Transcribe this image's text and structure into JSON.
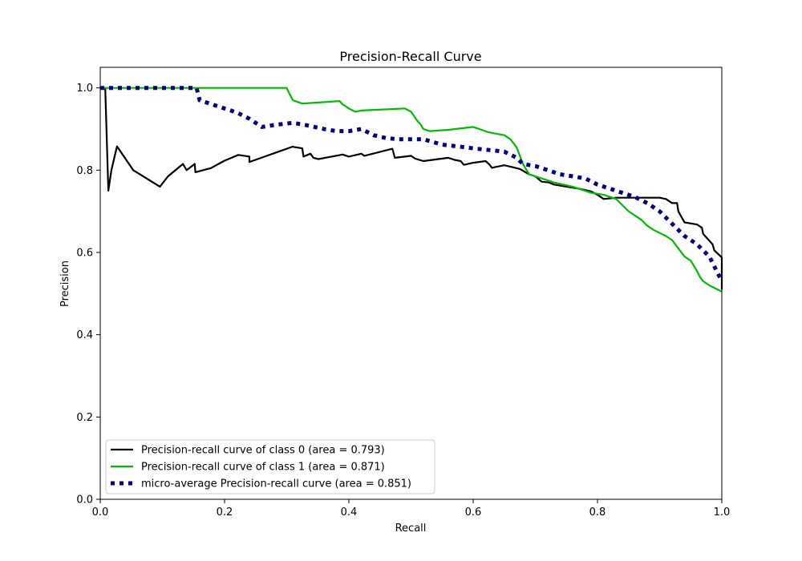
{
  "chart_data": {
    "type": "line",
    "title": "Precision-Recall Curve",
    "xlabel": "Recall",
    "ylabel": "Precision",
    "xlim": [
      0,
      1
    ],
    "ylim": [
      0,
      1.05
    ],
    "x_ticks": [
      0.0,
      0.2,
      0.4,
      0.6,
      0.8,
      1.0
    ],
    "x_tick_labels": [
      "0.0",
      "0.2",
      "0.4",
      "0.6",
      "0.8",
      "1.0"
    ],
    "y_ticks": [
      0.0,
      0.2,
      0.4,
      0.6,
      0.8,
      1.0
    ],
    "y_tick_labels": [
      "0.0",
      "0.2",
      "0.4",
      "0.6",
      "0.8",
      "1.0"
    ],
    "grid": false,
    "legend_position": "lower-left",
    "series": [
      {
        "name": "Precision-recall curve of class 0 (area = 0.793)",
        "color": "#000000",
        "style": "solid",
        "x": [
          0.0,
          0.008,
          0.013,
          0.018,
          0.027,
          0.053,
          0.096,
          0.109,
          0.133,
          0.139,
          0.152,
          0.153,
          0.178,
          0.2,
          0.222,
          0.24,
          0.24,
          0.283,
          0.309,
          0.325,
          0.327,
          0.338,
          0.343,
          0.351,
          0.39,
          0.4,
          0.42,
          0.425,
          0.47,
          0.474,
          0.5,
          0.507,
          0.52,
          0.56,
          0.57,
          0.58,
          0.585,
          0.6,
          0.62,
          0.626,
          0.63,
          0.65,
          0.675,
          0.69,
          0.7,
          0.71,
          0.722,
          0.73,
          0.75,
          0.77,
          0.785,
          0.79,
          0.8,
          0.805,
          0.81,
          0.83,
          0.88,
          0.9,
          0.91,
          0.92,
          0.928,
          0.93,
          0.94,
          0.96,
          0.968,
          0.97,
          0.985,
          0.988,
          1.0,
          1.0
        ],
        "y": [
          1.0,
          1.0,
          0.75,
          0.8,
          0.858,
          0.8,
          0.76,
          0.785,
          0.815,
          0.8,
          0.815,
          0.795,
          0.805,
          0.823,
          0.837,
          0.833,
          0.82,
          0.843,
          0.857,
          0.853,
          0.833,
          0.84,
          0.83,
          0.827,
          0.838,
          0.833,
          0.84,
          0.835,
          0.852,
          0.83,
          0.835,
          0.828,
          0.822,
          0.83,
          0.825,
          0.822,
          0.813,
          0.818,
          0.822,
          0.814,
          0.806,
          0.812,
          0.803,
          0.79,
          0.785,
          0.772,
          0.77,
          0.765,
          0.76,
          0.755,
          0.75,
          0.748,
          0.74,
          0.735,
          0.73,
          0.733,
          0.733,
          0.733,
          0.73,
          0.72,
          0.72,
          0.7,
          0.673,
          0.668,
          0.66,
          0.645,
          0.62,
          0.605,
          0.588,
          0.51
        ]
      },
      {
        "name": "Precision-recall curve of class 1 (area = 0.871)",
        "color": "#00bb00",
        "style": "solid",
        "x": [
          0.0,
          0.3,
          0.303,
          0.31,
          0.325,
          0.385,
          0.39,
          0.4,
          0.41,
          0.42,
          0.49,
          0.5,
          0.51,
          0.515,
          0.52,
          0.53,
          0.56,
          0.6,
          0.61,
          0.625,
          0.65,
          0.66,
          0.67,
          0.68,
          0.69,
          0.71,
          0.73,
          0.76,
          0.79,
          0.81,
          0.83,
          0.85,
          0.87,
          0.88,
          0.89,
          0.91,
          0.92,
          0.93,
          0.94,
          0.945,
          0.95,
          0.96,
          0.965,
          0.97,
          0.98,
          1.0
        ],
        "y": [
          1.0,
          1.0,
          0.99,
          0.97,
          0.962,
          0.968,
          0.96,
          0.95,
          0.942,
          0.945,
          0.95,
          0.942,
          0.92,
          0.912,
          0.9,
          0.895,
          0.898,
          0.905,
          0.9,
          0.892,
          0.885,
          0.875,
          0.855,
          0.815,
          0.79,
          0.78,
          0.77,
          0.76,
          0.745,
          0.74,
          0.73,
          0.7,
          0.68,
          0.665,
          0.655,
          0.64,
          0.63,
          0.61,
          0.59,
          0.585,
          0.58,
          0.555,
          0.54,
          0.53,
          0.52,
          0.505
        ]
      },
      {
        "name": "micro-average Precision-recall curve (area = 0.851)",
        "color": "#000080",
        "style": "dotted",
        "x": [
          0.0,
          0.155,
          0.16,
          0.19,
          0.22,
          0.24,
          0.26,
          0.28,
          0.31,
          0.33,
          0.36,
          0.38,
          0.4,
          0.42,
          0.44,
          0.46,
          0.48,
          0.52,
          0.55,
          0.58,
          0.6,
          0.62,
          0.65,
          0.67,
          0.68,
          0.7,
          0.72,
          0.74,
          0.76,
          0.78,
          0.8,
          0.82,
          0.84,
          0.86,
          0.88,
          0.9,
          0.92,
          0.94,
          0.96,
          0.98,
          1.0
        ],
        "y": [
          1.0,
          1.0,
          0.97,
          0.955,
          0.94,
          0.925,
          0.905,
          0.91,
          0.915,
          0.91,
          0.9,
          0.895,
          0.895,
          0.9,
          0.885,
          0.878,
          0.875,
          0.875,
          0.862,
          0.857,
          0.853,
          0.85,
          0.845,
          0.83,
          0.815,
          0.81,
          0.8,
          0.79,
          0.785,
          0.78,
          0.765,
          0.755,
          0.745,
          0.735,
          0.72,
          0.7,
          0.67,
          0.64,
          0.62,
          0.59,
          0.53
        ]
      }
    ]
  }
}
